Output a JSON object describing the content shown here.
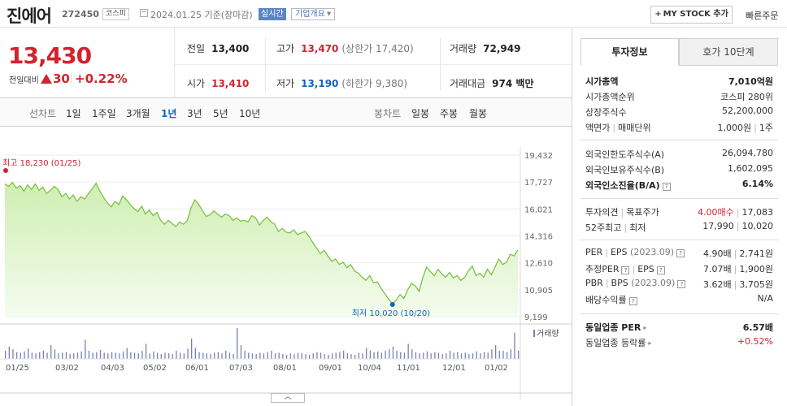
{
  "header": {
    "name": "진에어",
    "code": "272450",
    "market": "코스피",
    "date": "2024.01.25",
    "date_basis": "기준(장마감)",
    "realtime": "실시간",
    "company_info": "기업개요",
    "mystock": "MY STOCK 추가",
    "quick_order": "빠른주문"
  },
  "price": {
    "current": "13,430",
    "change_label": "전일대비",
    "change": "30",
    "change_pct": "+0.22%"
  },
  "quote": {
    "prev_label": "전일",
    "prev": "13,400",
    "high_label": "고가",
    "high": "13,470",
    "upper_limit": "(상한가 17,420)",
    "volume_label": "거래량",
    "volume": "72,949",
    "open_label": "시가",
    "open": "13,410",
    "low_label": "저가",
    "low": "13,190",
    "lower_limit": "(하한가 9,380)",
    "amount_label": "거래대금",
    "amount": "974 백만"
  },
  "tabs": {
    "line_label": "선차트",
    "periods": [
      "1일",
      "1주일",
      "3개월",
      "1년",
      "3년",
      "5년",
      "10년"
    ],
    "active": "1년",
    "candle_label": "봉차트",
    "candle_periods": [
      "일봉",
      "주봉",
      "월봉"
    ]
  },
  "chart_data": {
    "type": "area",
    "x_ticks": [
      "01/25",
      "03/02",
      "04/03",
      "05/02",
      "06/01",
      "07/03",
      "08/01",
      "09/01",
      "10/04",
      "11/01",
      "12/01",
      "01/02"
    ],
    "y_ticks": [
      "19,432",
      "17,727",
      "16,021",
      "14,316",
      "12,610",
      "10,905",
      "9,199"
    ],
    "ylim": [
      9199,
      19432
    ],
    "high_label": "최고 18,230 (01/25)",
    "low_label": "최저 10,020 (10/20)",
    "high_value": 18230,
    "low_value": 10020,
    "volume_label": "거래량",
    "series": [
      {
        "values": [
          17600,
          17450,
          17700,
          17350,
          17500,
          17150,
          17550,
          17250,
          17600,
          17200,
          17400,
          17000,
          17200,
          17450,
          17250,
          16800,
          17000,
          16650,
          16900,
          16500,
          16800,
          16650,
          17000,
          17300,
          17650,
          17150,
          16750,
          16400,
          16150,
          16500,
          16300,
          16850,
          16600,
          16300,
          16050,
          15850,
          16200,
          15700,
          15950,
          15600,
          15800,
          15300,
          15050,
          15300,
          15100,
          14900,
          15200,
          15050,
          15300,
          16100,
          16600,
          16300,
          15900,
          15550,
          15650,
          15900,
          15700,
          15500,
          15700,
          15600,
          15300,
          15450,
          15250,
          15300,
          15200,
          15600,
          15450,
          15000,
          15300,
          15500,
          15200,
          15050,
          14600,
          14800,
          14550,
          14500,
          14700,
          14400,
          14500,
          14600,
          14300,
          13900,
          13550,
          13200,
          13400,
          13050,
          12700,
          12850,
          12500,
          12650,
          12300,
          12500,
          12100,
          11950,
          11700,
          11500,
          11800,
          11350,
          11400,
          11000,
          10650,
          10300,
          10020,
          10250,
          10600,
          10350,
          10900,
          11300,
          11150,
          10800,
          11700,
          12350,
          12050,
          11800,
          12200,
          11900,
          11700,
          12000,
          11650,
          11800,
          11500,
          11700,
          12100,
          12400,
          11800,
          11950,
          11700,
          12200,
          11850,
          12350,
          12850,
          12500,
          12650,
          13150,
          13050,
          13430
        ],
        "color": "#7cc243"
      }
    ],
    "volumes": [
      12,
      18,
      14,
      10,
      9,
      11,
      15,
      9,
      8,
      10,
      12,
      9,
      20,
      14,
      8,
      9,
      10,
      7,
      8,
      9,
      11,
      28,
      12,
      9,
      10,
      13,
      9,
      8,
      10,
      9,
      8,
      11,
      16,
      10,
      9,
      8,
      12,
      22,
      8,
      11,
      9,
      7,
      9,
      8,
      7,
      12,
      9,
      8,
      15,
      30,
      16,
      10,
      9,
      8,
      7,
      9,
      10,
      8,
      12,
      9,
      7,
      45,
      20,
      12,
      9,
      8,
      7,
      9,
      8,
      10,
      12,
      8,
      9,
      7,
      6,
      8,
      7,
      9,
      8,
      7,
      6,
      8,
      10,
      9,
      7,
      6,
      8,
      9,
      10,
      12,
      8,
      7,
      6,
      9,
      8,
      16,
      12,
      10,
      11,
      9,
      12,
      14,
      18,
      12,
      10,
      9,
      22,
      14,
      10,
      8,
      9,
      11,
      8,
      10,
      9,
      7,
      8,
      12,
      9,
      10,
      8,
      9,
      7,
      8,
      11,
      8,
      10,
      9,
      14,
      20,
      12,
      12,
      10,
      14,
      38,
      12
    ],
    "fill_color": "#cfeeb2",
    "line_color": "#7cc243",
    "volume_color": "#7b7fb8"
  },
  "tabs_right": {
    "invest": "투자정보",
    "orderbook": "호가 10단계"
  },
  "invest": {
    "mcap_label": "시가총액",
    "mcap": "7,010억원",
    "mcap_rank_label": "시가총액순위",
    "mcap_rank": "코스피 280위",
    "shares_label": "상장주식수",
    "shares": "52,200,000",
    "par_label": "액면가",
    "unit_label": "매매단위",
    "par": "1,000원",
    "unit": "1주",
    "foreign_limit_label": "외국인한도주식수(A)",
    "foreign_limit": "26,094,780",
    "foreign_hold_label": "외국인보유주식수(B)",
    "foreign_hold": "1,602,095",
    "foreign_rate_label": "외국인소진율(B/A)",
    "foreign_rate": "6.14%",
    "opinion_label": "투자의견",
    "target_label": "목표주가",
    "opinion": "4.00매수",
    "target": "17,083",
    "w52_high_label": "52주최고",
    "w52_low_label": "최저",
    "w52_high": "17,990",
    "w52_low": "10,020",
    "per_label": "PER",
    "eps_label": "EPS",
    "eps_year": "(2023.09)",
    "per": "4.90배",
    "eps": "2,741원",
    "est_per_label": "추정PER",
    "est_eps_label": "EPS",
    "est_per": "7.07배",
    "est_eps": "1,900원",
    "pbr_label": "PBR",
    "bps_label": "BPS",
    "bps_year": "(2023.09)",
    "pbr": "3.62배",
    "bps": "3,705원",
    "dividend_label": "배당수익률",
    "dividend": "N/A",
    "sector_per_label": "동일업종 PER",
    "sector_per": "6.57배",
    "sector_rate_label": "동일업종 등락률",
    "sector_rate": "+0.52%"
  }
}
